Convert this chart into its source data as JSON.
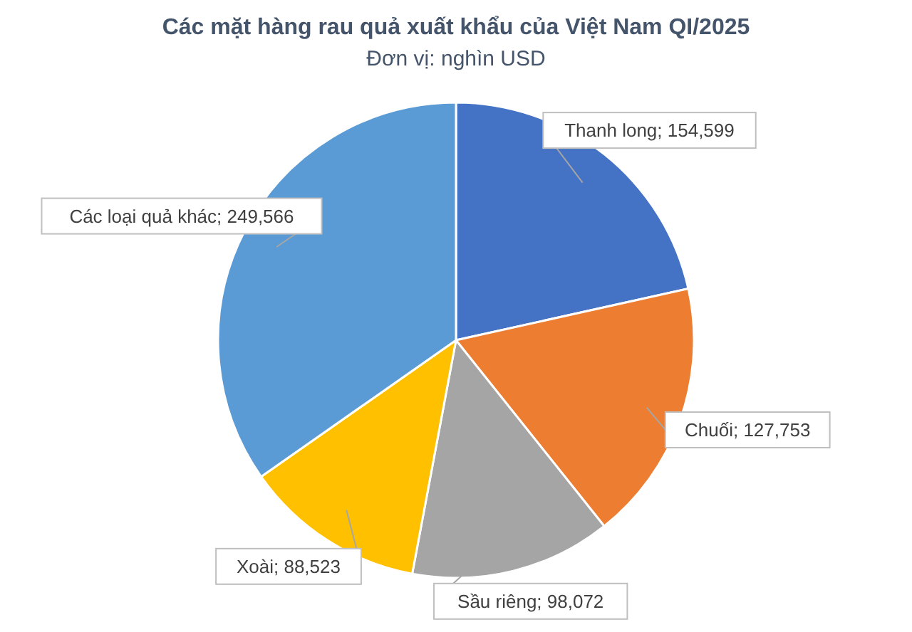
{
  "chart_data": {
    "type": "pie",
    "title": "Các mặt hàng rau quả xuất khẩu của Việt Nam QI/2025",
    "subtitle": "Đơn vị: nghìn USD",
    "categories": [
      "Thanh long",
      "Chuối",
      "Sầu riêng",
      "Xoài",
      "Các loại quả khác"
    ],
    "values": [
      154599,
      127753,
      98072,
      88523,
      249566
    ],
    "value_labels": [
      "154,599",
      "127,753",
      "98,072",
      "88,523",
      "249,566"
    ],
    "colors": [
      "#4472c4",
      "#ed7d31",
      "#a5a5a5",
      "#ffc000",
      "#5b9bd5"
    ]
  }
}
